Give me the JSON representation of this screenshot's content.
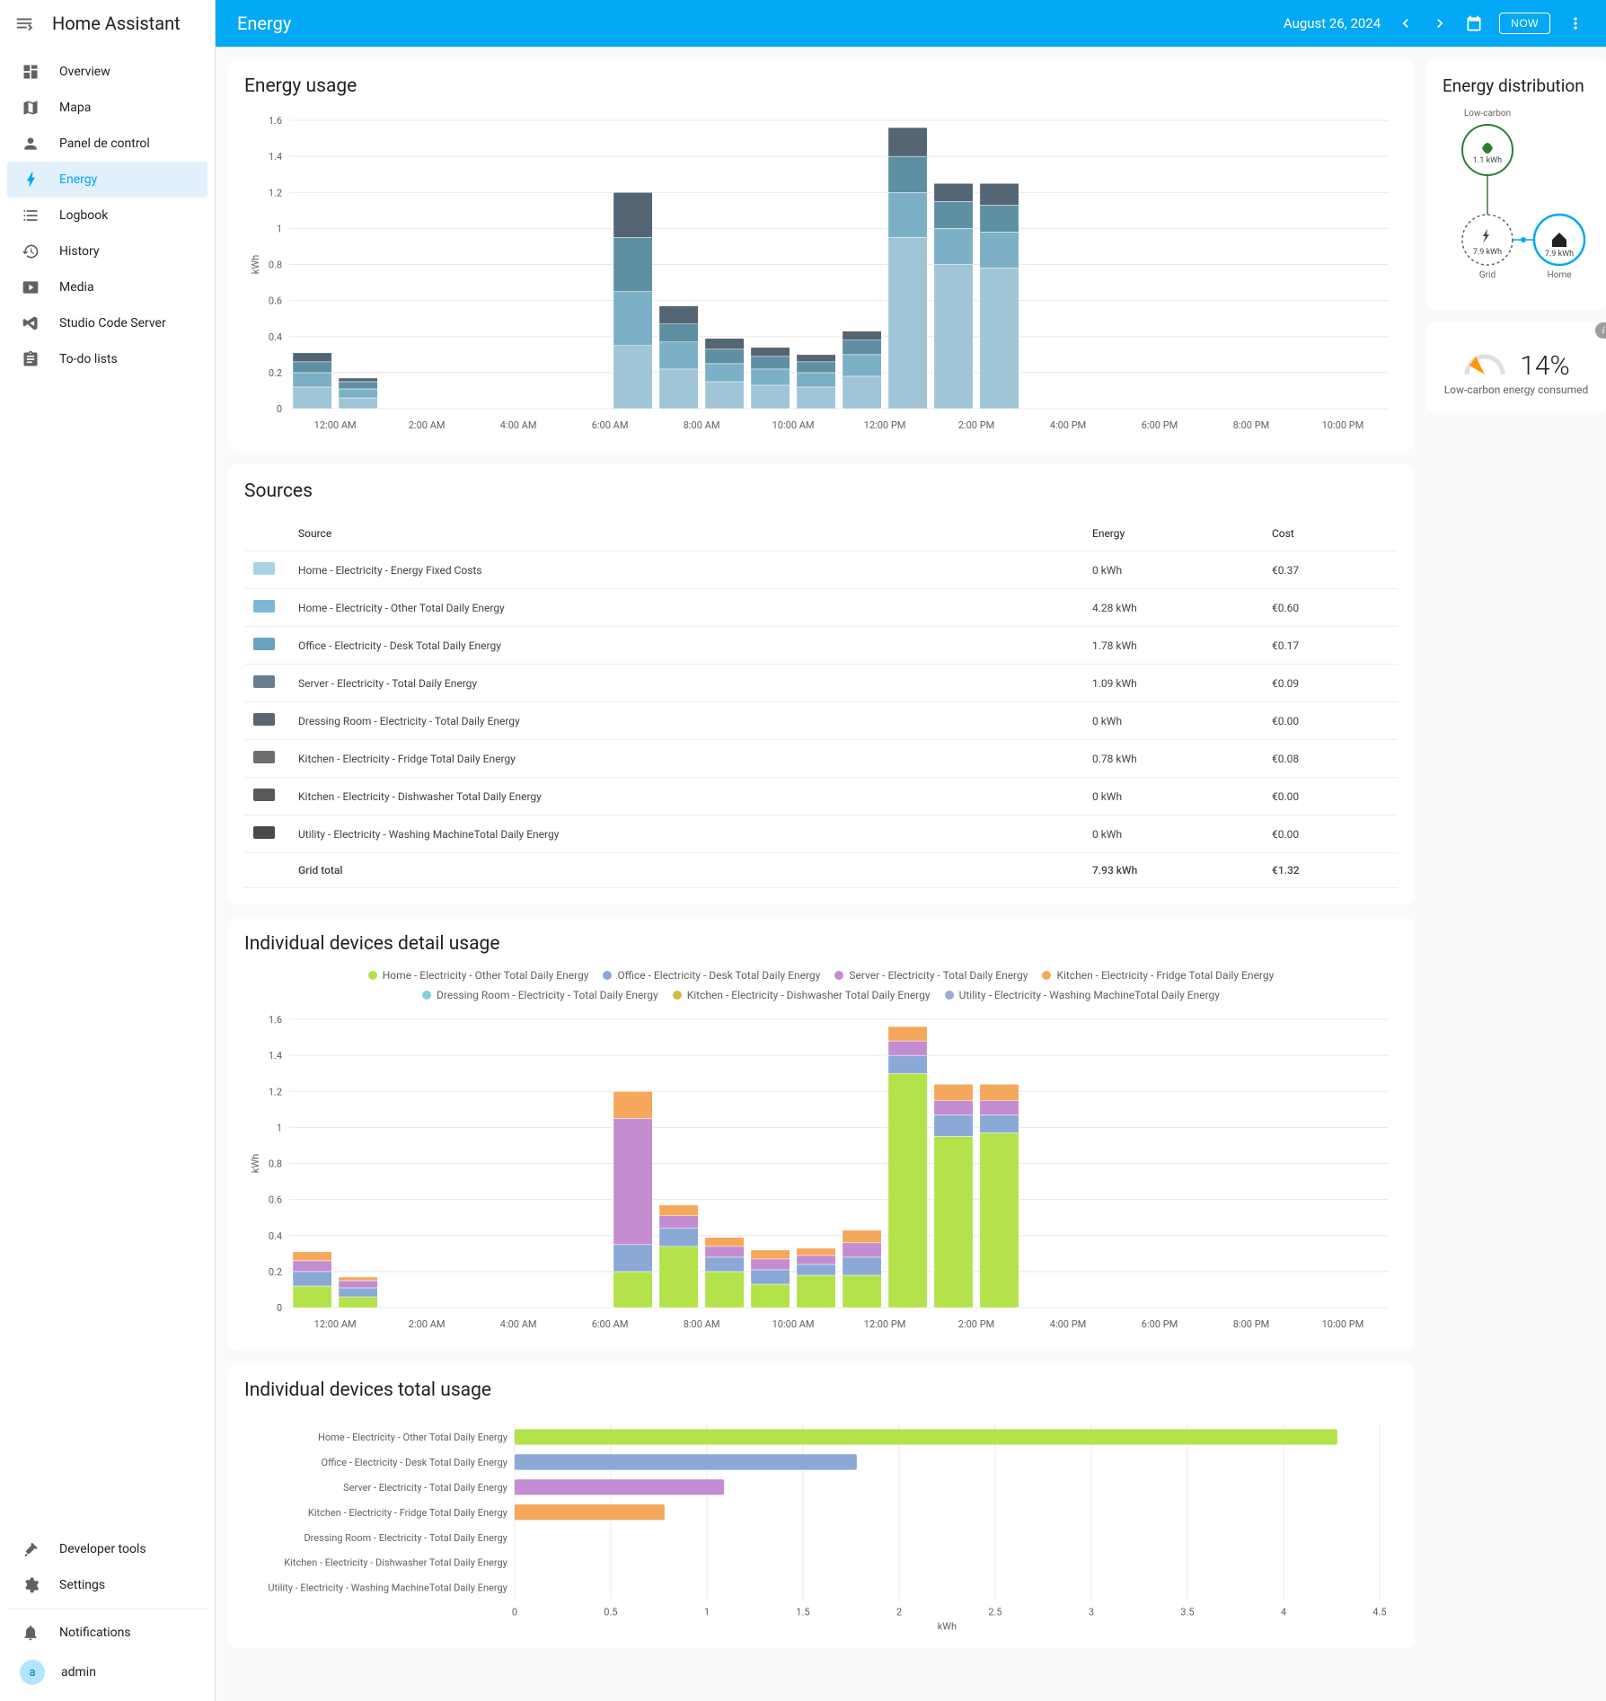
{
  "app_title": "Home Assistant",
  "page": "Energy",
  "date_label": "August 26, 2024",
  "now_label": "NOW",
  "sidebar": {
    "items": [
      {
        "icon": "dashboard",
        "label": "Overview"
      },
      {
        "icon": "map",
        "label": "Mapa"
      },
      {
        "icon": "person",
        "label": "Panel de control"
      },
      {
        "icon": "bolt",
        "label": "Energy"
      },
      {
        "icon": "logbook",
        "label": "Logbook"
      },
      {
        "icon": "history",
        "label": "History"
      },
      {
        "icon": "media",
        "label": "Media"
      },
      {
        "icon": "vscode",
        "label": "Studio Code Server"
      },
      {
        "icon": "todo",
        "label": "To-do lists"
      }
    ],
    "bottom": [
      {
        "icon": "hammer",
        "label": "Developer tools"
      },
      {
        "icon": "cog",
        "label": "Settings"
      }
    ],
    "notifications_label": "Notifications",
    "user": {
      "initial": "a",
      "name": "admin"
    }
  },
  "energy_usage": {
    "title": "Energy usage",
    "type": "stacked-bar",
    "ylabel": "kWh",
    "ylim": [
      0,
      1.6
    ],
    "ytick_step": 0.2,
    "x_labels": [
      "12:00 AM",
      "2:00 AM",
      "4:00 AM",
      "6:00 AM",
      "8:00 AM",
      "10:00 AM",
      "12:00 PM",
      "2:00 PM",
      "4:00 PM",
      "6:00 PM",
      "8:00 PM",
      "10:00 PM"
    ],
    "colors": [
      "#9fc5d6",
      "#7bb0c7",
      "#5f8fa3",
      "#546573"
    ],
    "bars": [
      {
        "x": 0,
        "seg": [
          0.12,
          0.08,
          0.06,
          0.05
        ]
      },
      {
        "x": 1,
        "seg": [
          0.06,
          0.05,
          0.04,
          0.02
        ]
      },
      {
        "x": 7,
        "seg": [
          0.35,
          0.3,
          0.3,
          0.25
        ]
      },
      {
        "x": 8,
        "seg": [
          0.22,
          0.15,
          0.1,
          0.1
        ]
      },
      {
        "x": 9,
        "seg": [
          0.15,
          0.1,
          0.08,
          0.06
        ]
      },
      {
        "x": 10,
        "seg": [
          0.13,
          0.09,
          0.07,
          0.05
        ]
      },
      {
        "x": 11,
        "seg": [
          0.12,
          0.08,
          0.06,
          0.04
        ]
      },
      {
        "x": 12,
        "seg": [
          0.18,
          0.12,
          0.08,
          0.05
        ]
      },
      {
        "x": 13,
        "seg": [
          0.95,
          0.25,
          0.2,
          0.16
        ]
      },
      {
        "x": 14,
        "seg": [
          0.8,
          0.2,
          0.15,
          0.1
        ]
      },
      {
        "x": 15,
        "seg": [
          0.78,
          0.2,
          0.15,
          0.12
        ]
      }
    ],
    "background_color": "#ffffff",
    "grid_color": "#e8e8e8"
  },
  "sources": {
    "title": "Sources",
    "headers": {
      "source": "Source",
      "energy": "Energy",
      "cost": "Cost"
    },
    "rows": [
      {
        "color": "#a8d3e6",
        "name": "Home - Electricity - Energy Fixed Costs",
        "energy": "0 kWh",
        "cost": "€0.37"
      },
      {
        "color": "#7bb8d4",
        "name": "Home - Electricity - Other Total Daily Energy",
        "energy": "4.28 kWh",
        "cost": "€0.60"
      },
      {
        "color": "#6ba3bf",
        "name": "Office - Electricity - Desk Total Daily Energy",
        "energy": "1.78 kWh",
        "cost": "€0.17"
      },
      {
        "color": "#6b7d8d",
        "name": "Server - Electricity - Total Daily Energy",
        "energy": "1.09 kWh",
        "cost": "€0.09"
      },
      {
        "color": "#5a6671",
        "name": "Dressing Room - Electricity - Total Daily Energy",
        "energy": "0 kWh",
        "cost": "€0.00"
      },
      {
        "color": "#6d6d6d",
        "name": "Kitchen - Electricity - Fridge Total Daily Energy",
        "energy": "0.78 kWh",
        "cost": "€0.08"
      },
      {
        "color": "#595959",
        "name": "Kitchen - Electricity - Dishwasher Total Daily Energy",
        "energy": "0 kWh",
        "cost": "€0.00"
      },
      {
        "color": "#4a4a4a",
        "name": "Utility - Electricity - Washing MachineTotal Daily Energy",
        "energy": "0 kWh",
        "cost": "€0.00"
      }
    ],
    "total": {
      "label": "Grid total",
      "energy": "7.93 kWh",
      "cost": "€1.32"
    }
  },
  "devices_detail": {
    "title": "Individual devices detail usage",
    "type": "stacked-bar",
    "ylabel": "kWh",
    "ylim": [
      0,
      1.6
    ],
    "ytick_step": 0.2,
    "x_labels": [
      "12:00 AM",
      "2:00 AM",
      "4:00 AM",
      "6:00 AM",
      "8:00 AM",
      "10:00 AM",
      "12:00 PM",
      "2:00 PM",
      "4:00 PM",
      "6:00 PM",
      "8:00 PM",
      "10:00 PM"
    ],
    "series": [
      {
        "name": "Home - Electricity - Other Total Daily Energy",
        "color": "#b3e24a"
      },
      {
        "name": "Office - Electricity - Desk Total Daily Energy",
        "color": "#8aa9d6"
      },
      {
        "name": "Server - Electricity - Total Daily Energy",
        "color": "#c48dd1"
      },
      {
        "name": "Kitchen - Electricity - Fridge Total Daily Energy",
        "color": "#f5a85b"
      },
      {
        "name": "Dressing Room - Electricity - Total Daily Energy",
        "color": "#7fd3d9"
      },
      {
        "name": "Kitchen - Electricity - Dishwasher Total Daily Energy",
        "color": "#d4b94a"
      },
      {
        "name": "Utility - Electricity - Washing MachineTotal Daily Energy",
        "color": "#9fa8da"
      }
    ],
    "bars": [
      {
        "x": 0,
        "seg": [
          0.12,
          0.08,
          0.06,
          0.05,
          0,
          0,
          0
        ]
      },
      {
        "x": 1,
        "seg": [
          0.06,
          0.05,
          0.04,
          0.02,
          0,
          0,
          0
        ]
      },
      {
        "x": 7,
        "seg": [
          0.2,
          0.15,
          0.7,
          0.15,
          0,
          0,
          0
        ]
      },
      {
        "x": 8,
        "seg": [
          0.34,
          0.1,
          0.07,
          0.06,
          0,
          0,
          0
        ]
      },
      {
        "x": 9,
        "seg": [
          0.2,
          0.08,
          0.06,
          0.05,
          0,
          0,
          0
        ]
      },
      {
        "x": 10,
        "seg": [
          0.13,
          0.08,
          0.06,
          0.05,
          0,
          0,
          0
        ]
      },
      {
        "x": 11,
        "seg": [
          0.18,
          0.06,
          0.05,
          0.04,
          0,
          0,
          0
        ]
      },
      {
        "x": 12,
        "seg": [
          0.18,
          0.1,
          0.08,
          0.07,
          0,
          0,
          0
        ]
      },
      {
        "x": 13,
        "seg": [
          1.3,
          0.1,
          0.08,
          0.08,
          0,
          0,
          0
        ]
      },
      {
        "x": 14,
        "seg": [
          0.95,
          0.12,
          0.08,
          0.09,
          0,
          0,
          0
        ]
      },
      {
        "x": 15,
        "seg": [
          0.97,
          0.1,
          0.08,
          0.09,
          0,
          0,
          0
        ]
      }
    ]
  },
  "devices_total": {
    "title": "Individual devices total usage",
    "type": "horizontal-bar",
    "xlabel": "kWh",
    "xlim": [
      0,
      4.5
    ],
    "xtick_step": 0.5,
    "rows": [
      {
        "name": "Home - Electricity - Other Total Daily Energy",
        "value": 4.28,
        "color": "#b3e24a"
      },
      {
        "name": "Office - Electricity - Desk Total Daily Energy",
        "value": 1.78,
        "color": "#8aa9d6"
      },
      {
        "name": "Server - Electricity - Total Daily Energy",
        "value": 1.09,
        "color": "#c48dd1"
      },
      {
        "name": "Kitchen - Electricity - Fridge Total Daily Energy",
        "value": 0.78,
        "color": "#f5a85b"
      },
      {
        "name": "Dressing Room - Electricity - Total Daily Energy",
        "value": 0,
        "color": "#7fd3d9"
      },
      {
        "name": "Kitchen - Electricity - Dishwasher Total Daily Energy",
        "value": 0,
        "color": "#d4b94a"
      },
      {
        "name": "Utility - Electricity - Washing MachineTotal Daily Energy",
        "value": 0,
        "color": "#9fa8da"
      }
    ]
  },
  "distribution": {
    "title": "Energy distribution",
    "low_carbon_label": "Low-carbon",
    "low_carbon_value": "1.1 kWh",
    "grid_value": "7.9 kWh",
    "grid_label": "Grid",
    "home_value": "7.9 kWh",
    "home_label": "Home",
    "colors": {
      "low_carbon": "#2e7d32",
      "grid": "#616161",
      "home": "#03a9f4",
      "line": "#bdbdbd"
    }
  },
  "gauge": {
    "percent": "14%",
    "label": "Low-carbon energy consumed",
    "needle_color": "#ff9800",
    "track_color": "#e0e0e0"
  }
}
